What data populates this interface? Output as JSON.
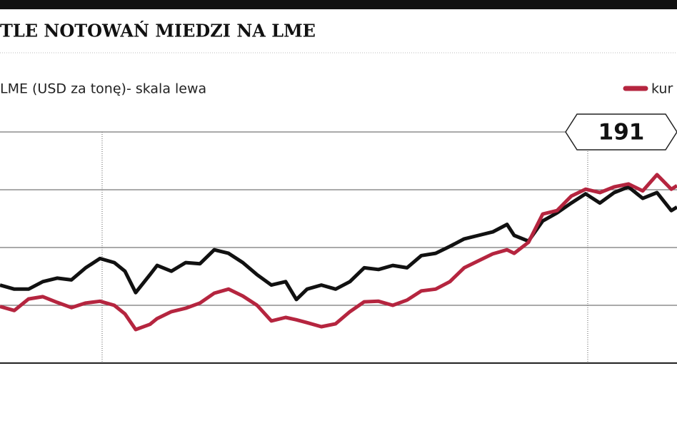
{
  "chart_data": {
    "type": "line",
    "title": "TLE NOTOWAŃ MIEDZI NA LME",
    "annotation": "191",
    "x": [
      0,
      20,
      40,
      60,
      80,
      100,
      120,
      140,
      160,
      175,
      190,
      210,
      220,
      240,
      260,
      280,
      300,
      320,
      340,
      360,
      380,
      400,
      415,
      430,
      450,
      470,
      490,
      510,
      530,
      550,
      570,
      590,
      610,
      630,
      650,
      670,
      690,
      710,
      720,
      740,
      760,
      780,
      800,
      820,
      840,
      860,
      880,
      900,
      920,
      940,
      948
    ],
    "xlim": [
      0,
      948
    ],
    "ylim": [
      0,
      4
    ],
    "series": [
      {
        "name": "LME (USD za tonę)- skala lewa",
        "color": "#111111",
        "values": [
          1.35,
          1.28,
          1.28,
          1.41,
          1.47,
          1.44,
          1.65,
          1.81,
          1.74,
          1.59,
          1.22,
          1.53,
          1.69,
          1.59,
          1.74,
          1.72,
          1.96,
          1.9,
          1.74,
          1.53,
          1.35,
          1.41,
          1.1,
          1.28,
          1.35,
          1.28,
          1.41,
          1.65,
          1.62,
          1.69,
          1.65,
          1.86,
          1.9,
          2.02,
          2.15,
          2.21,
          2.27,
          2.4,
          2.21,
          2.11,
          2.46,
          2.6,
          2.77,
          2.93,
          2.77,
          2.95,
          3.05,
          2.85,
          2.95,
          2.64,
          2.7
        ]
      },
      {
        "name": "kur",
        "color": "#b5253f",
        "values": [
          0.98,
          0.91,
          1.11,
          1.15,
          1.05,
          0.96,
          1.04,
          1.07,
          1.0,
          0.85,
          0.58,
          0.67,
          0.77,
          0.89,
          0.95,
          1.04,
          1.21,
          1.28,
          1.16,
          1.0,
          0.73,
          0.79,
          0.75,
          0.7,
          0.63,
          0.68,
          0.89,
          1.06,
          1.07,
          1.0,
          1.09,
          1.25,
          1.28,
          1.41,
          1.65,
          1.77,
          1.89,
          1.96,
          1.9,
          2.09,
          2.58,
          2.64,
          2.89,
          3.01,
          2.95,
          3.05,
          3.1,
          2.98,
          3.26,
          3.01,
          3.07
        ]
      }
    ]
  }
}
